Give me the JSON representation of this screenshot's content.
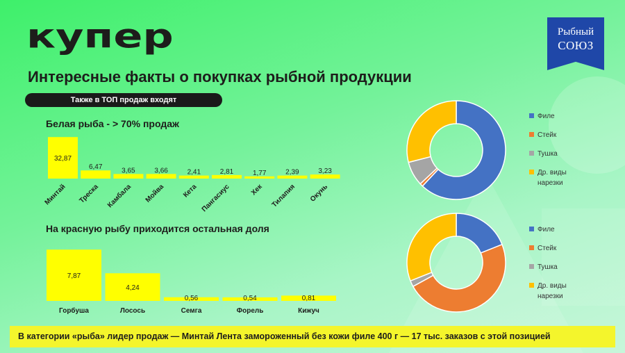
{
  "brand": {
    "logo_text": "купер",
    "partner_line1": "Рыбный",
    "partner_line2": "СОЮЗ"
  },
  "title": "Интересные факты о покупках рыбной продукции",
  "subtitle_pill": "Также в ТОП продаж входят",
  "section1_title": "Белая рыба - > 70% продаж",
  "section2_title": "На красную рыбу приходится остальная доля",
  "footer": "В категории «рыба» лидер продаж — Минтай Лента замороженный без кожи филе 400 г — 17 тыс. заказов с этой позицией",
  "colors": {
    "bar": "#ffff00",
    "fillet": "#4472c4",
    "steak": "#ed7d31",
    "carcass": "#a5a5a5",
    "other_cuts": "#ffc000",
    "footer_bg": "#f4f52c"
  },
  "chart_data": [
    {
      "type": "bar",
      "categories": [
        "Минтай",
        "Треска",
        "Камбала",
        "Мойва",
        "Кета",
        "Пангасиус",
        "Хек",
        "Тилапия",
        "Окунь"
      ],
      "values": [
        32.87,
        6.47,
        3.65,
        3.66,
        2.41,
        2.81,
        1.77,
        2.39,
        3.23
      ],
      "value_labels": [
        "32,87",
        "6,47",
        "3,65",
        "3,66",
        "2,41",
        "2,81",
        "1,77",
        "2,39",
        "3,23"
      ],
      "title": "",
      "xlabel": "",
      "ylabel": "",
      "ylim": [
        0,
        33
      ]
    },
    {
      "type": "bar",
      "categories": [
        "Горбуша",
        "Лосось",
        "Семга",
        "Форель",
        "Кижуч"
      ],
      "values": [
        7.87,
        4.24,
        0.56,
        0.54,
        0.81
      ],
      "value_labels": [
        "7,87",
        "4,24",
        "0,56",
        "0,54",
        "0,81"
      ],
      "title": "",
      "xlabel": "",
      "ylabel": "",
      "ylim": [
        0,
        8
      ]
    },
    {
      "type": "pie",
      "labels": [
        "Филе",
        "Стейк",
        "Тушка",
        "Др. виды нарезки"
      ],
      "values": [
        62,
        1,
        8,
        29
      ],
      "legend": "right"
    },
    {
      "type": "pie",
      "labels": [
        "Филе",
        "Стейк",
        "Тушка",
        "Др. виды нарезки"
      ],
      "values": [
        19,
        48,
        2,
        31
      ],
      "legend": "right"
    }
  ]
}
